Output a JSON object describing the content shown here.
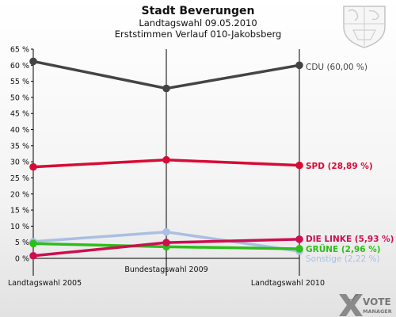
{
  "chart_data": {
    "type": "line",
    "title": "Stadt Beverungen",
    "subtitle_1": "Landtagswahl 09.05.2010",
    "subtitle_2": "Erststimmen Verlauf 010-Jakobsberg",
    "categories": [
      "Landtagswahl 2005",
      "Bundestagswahl 2009",
      "Landtagswahl 2010"
    ],
    "ylim": [
      0,
      65
    ],
    "yticks": [
      "0 %",
      "5 %",
      "10 %",
      "15 %",
      "20 %",
      "25 %",
      "30 %",
      "35 %",
      "40 %",
      "45 %",
      "50 %",
      "55 %",
      "60 %",
      "65 %"
    ],
    "grid": false,
    "series": [
      {
        "name": "Sonstige",
        "label": "Sonstige (2,22 %)",
        "color": "#a9bfe3",
        "values": [
          5.2,
          8.2,
          2.22
        ]
      },
      {
        "name": "GRÜNE",
        "label": "GRÜNE (2,96 %)",
        "color": "#2dbd1a",
        "values": [
          4.6,
          3.6,
          2.96
        ]
      },
      {
        "name": "DIE LINKE",
        "label": "DIE LINKE (5,93 %)",
        "color": "#cc0f4e",
        "values": [
          0.8,
          4.9,
          5.93
        ]
      },
      {
        "name": "SPD",
        "label": "SPD (28,89 %)",
        "color": "#d80b36",
        "values": [
          28.4,
          30.6,
          28.89
        ]
      },
      {
        "name": "CDU",
        "label": "CDU (60,00 %)",
        "color": "#444444",
        "values": [
          61.2,
          52.8,
          60.0
        ]
      }
    ]
  },
  "logo": {
    "word1": "VOTE",
    "word2": "MANAGER"
  },
  "crest": {
    "name": "coat-of-arms"
  }
}
